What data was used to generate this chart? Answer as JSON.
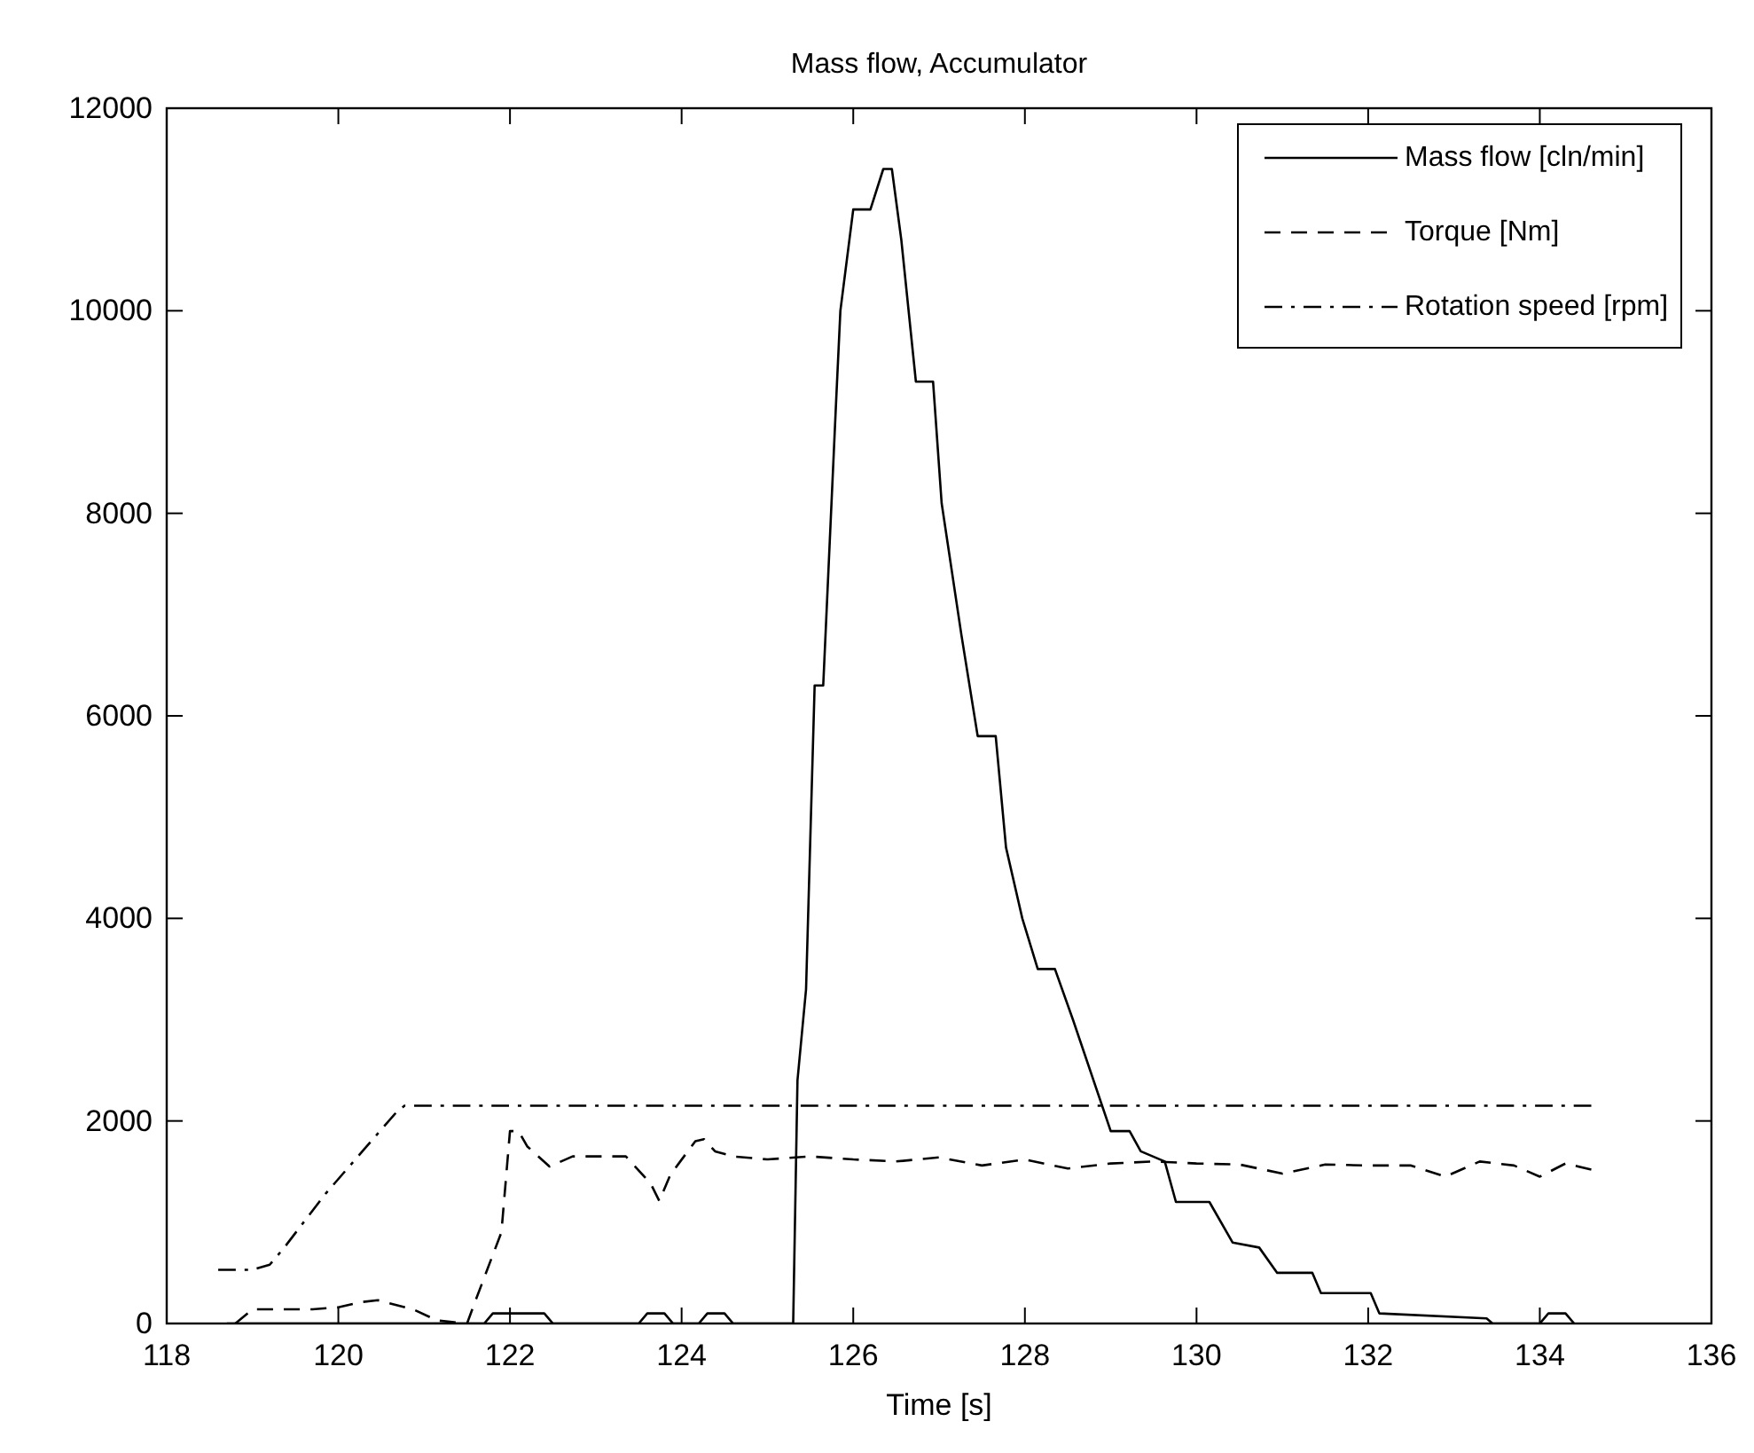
{
  "chart_data": {
    "type": "line",
    "title": "Mass flow, Accumulator",
    "xlabel": "Time [s]",
    "xlim": [
      118,
      136
    ],
    "xticks": [
      118,
      120,
      122,
      124,
      126,
      128,
      130,
      132,
      134,
      136
    ],
    "ylim": [
      0,
      12000
    ],
    "yticks": [
      0,
      2000,
      4000,
      6000,
      8000,
      10000,
      12000
    ],
    "grid": false,
    "legend": "top right",
    "marker": "none",
    "series": [
      {
        "name": "Mass flow [cln/min]",
        "color": "#000000",
        "line_style": "solid",
        "x": [
          118.7,
          121.7,
          121.8,
          122.4,
          122.5,
          123.5,
          123.6,
          123.8,
          123.9,
          124.2,
          124.3,
          124.5,
          124.6,
          125.3,
          125.35,
          125.45,
          125.55,
          125.65,
          125.8,
          125.85,
          126.0,
          126.2,
          126.35,
          126.45,
          126.56,
          126.73,
          126.93,
          127.03,
          127.26,
          127.45,
          127.66,
          127.78,
          127.97,
          128.15,
          128.35,
          128.56,
          129.0,
          129.22,
          129.35,
          129.63,
          129.76,
          130.15,
          130.42,
          130.73,
          130.94,
          131.35,
          131.45,
          132.03,
          132.13,
          133.38,
          133.45,
          134.0,
          134.1,
          134.3,
          134.4
        ],
        "values": [
          0,
          0,
          100,
          100,
          0,
          0,
          100,
          100,
          0,
          0,
          100,
          100,
          0,
          0,
          2400,
          3300,
          6300,
          6300,
          9100,
          10000,
          11000,
          11000,
          11400,
          11400,
          10700,
          9300,
          9300,
          8100,
          6800,
          5800,
          5800,
          4700,
          4000,
          3500,
          3500,
          3000,
          1900,
          1900,
          1700,
          1600,
          1200,
          1200,
          800,
          750,
          500,
          500,
          300,
          300,
          100,
          50,
          0,
          0,
          100,
          100,
          0
        ]
      },
      {
        "name": "Torque [Nm]",
        "color": "#000000",
        "line_style": "dashed",
        "x": [
          118.8,
          119.0,
          119.3,
          119.7,
          120.0,
          120.25,
          120.46,
          120.87,
          121.15,
          121.5,
          121.6,
          121.9,
          122.0,
          122.1,
          122.2,
          122.46,
          122.73,
          123.35,
          123.64,
          123.74,
          123.87,
          124.16,
          124.26,
          124.39,
          124.6,
          125.0,
          125.5,
          126.0,
          126.5,
          127.0,
          127.5,
          128.0,
          128.5,
          129.0,
          129.5,
          130.0,
          130.5,
          131.0,
          131.5,
          132.0,
          132.5,
          132.9,
          133.3,
          133.7,
          134.0,
          134.3,
          134.6
        ],
        "values": [
          0,
          140,
          140,
          140,
          160,
          210,
          230,
          140,
          30,
          0,
          230,
          900,
          1900,
          1900,
          1750,
          1550,
          1650,
          1650,
          1380,
          1210,
          1470,
          1800,
          1820,
          1700,
          1650,
          1620,
          1650,
          1620,
          1600,
          1640,
          1560,
          1620,
          1530,
          1580,
          1600,
          1580,
          1570,
          1480,
          1570,
          1560,
          1560,
          1450,
          1600,
          1560,
          1450,
          1580,
          1520
        ]
      },
      {
        "name": "Rotation speed [rpm]",
        "color": "#000000",
        "line_style": "dashdot",
        "x": [
          118.6,
          119.0,
          119.2,
          119.37,
          119.85,
          120.3,
          120.67,
          120.77,
          134.6
        ],
        "values": [
          530,
          530,
          580,
          750,
          1280,
          1720,
          2080,
          2150,
          2150
        ]
      }
    ]
  }
}
